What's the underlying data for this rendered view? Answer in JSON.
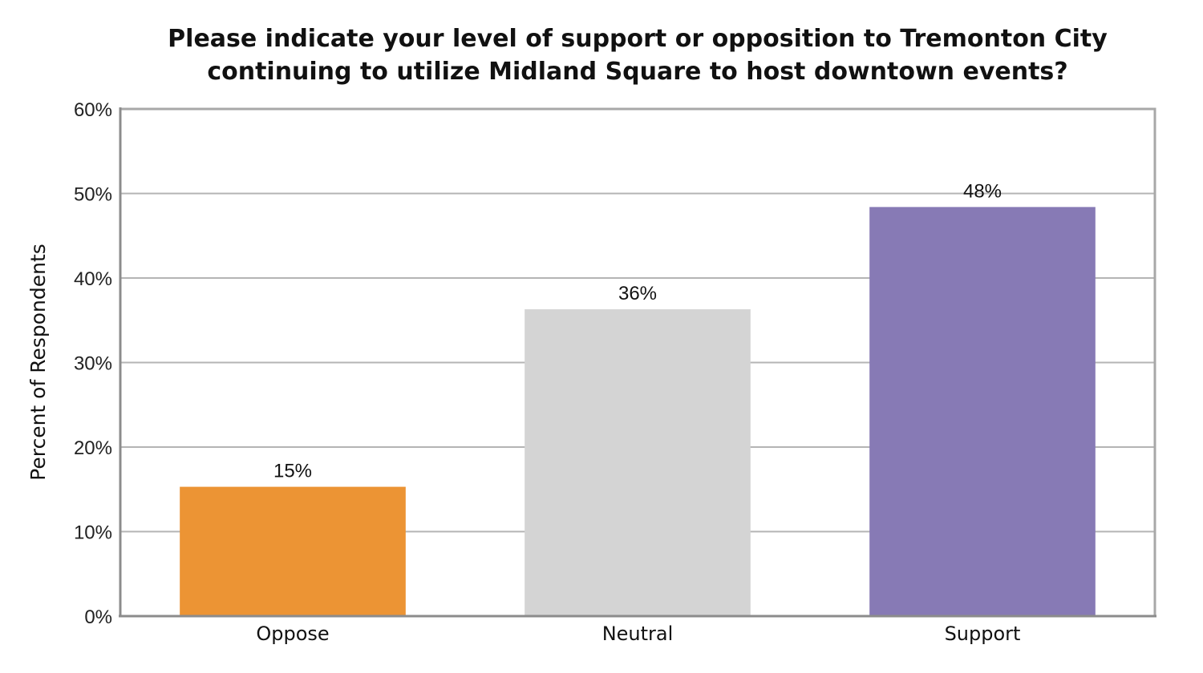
{
  "chart_data": {
    "type": "bar",
    "title_lines": [
      "Please indicate your level of support or opposition to Tremonton City",
      "continuing to utilize Midland Square to host downtown events?"
    ],
    "xlabel": "",
    "ylabel": "Percent of Respondents",
    "categories": [
      "Oppose",
      "Neutral",
      "Support"
    ],
    "values": [
      15.3,
      36.3,
      48.4
    ],
    "value_labels": [
      "15%",
      "36%",
      "48%"
    ],
    "colors": [
      "#EC9434",
      "#D4D4D4",
      "#877AB5"
    ],
    "ylim": [
      0,
      60
    ],
    "yticks": [
      0,
      10,
      20,
      30,
      40,
      50,
      60
    ],
    "ytick_labels": [
      "0%",
      "10%",
      "20%",
      "30%",
      "40%",
      "50%",
      "60%"
    ],
    "grid": true,
    "legend": "none"
  }
}
